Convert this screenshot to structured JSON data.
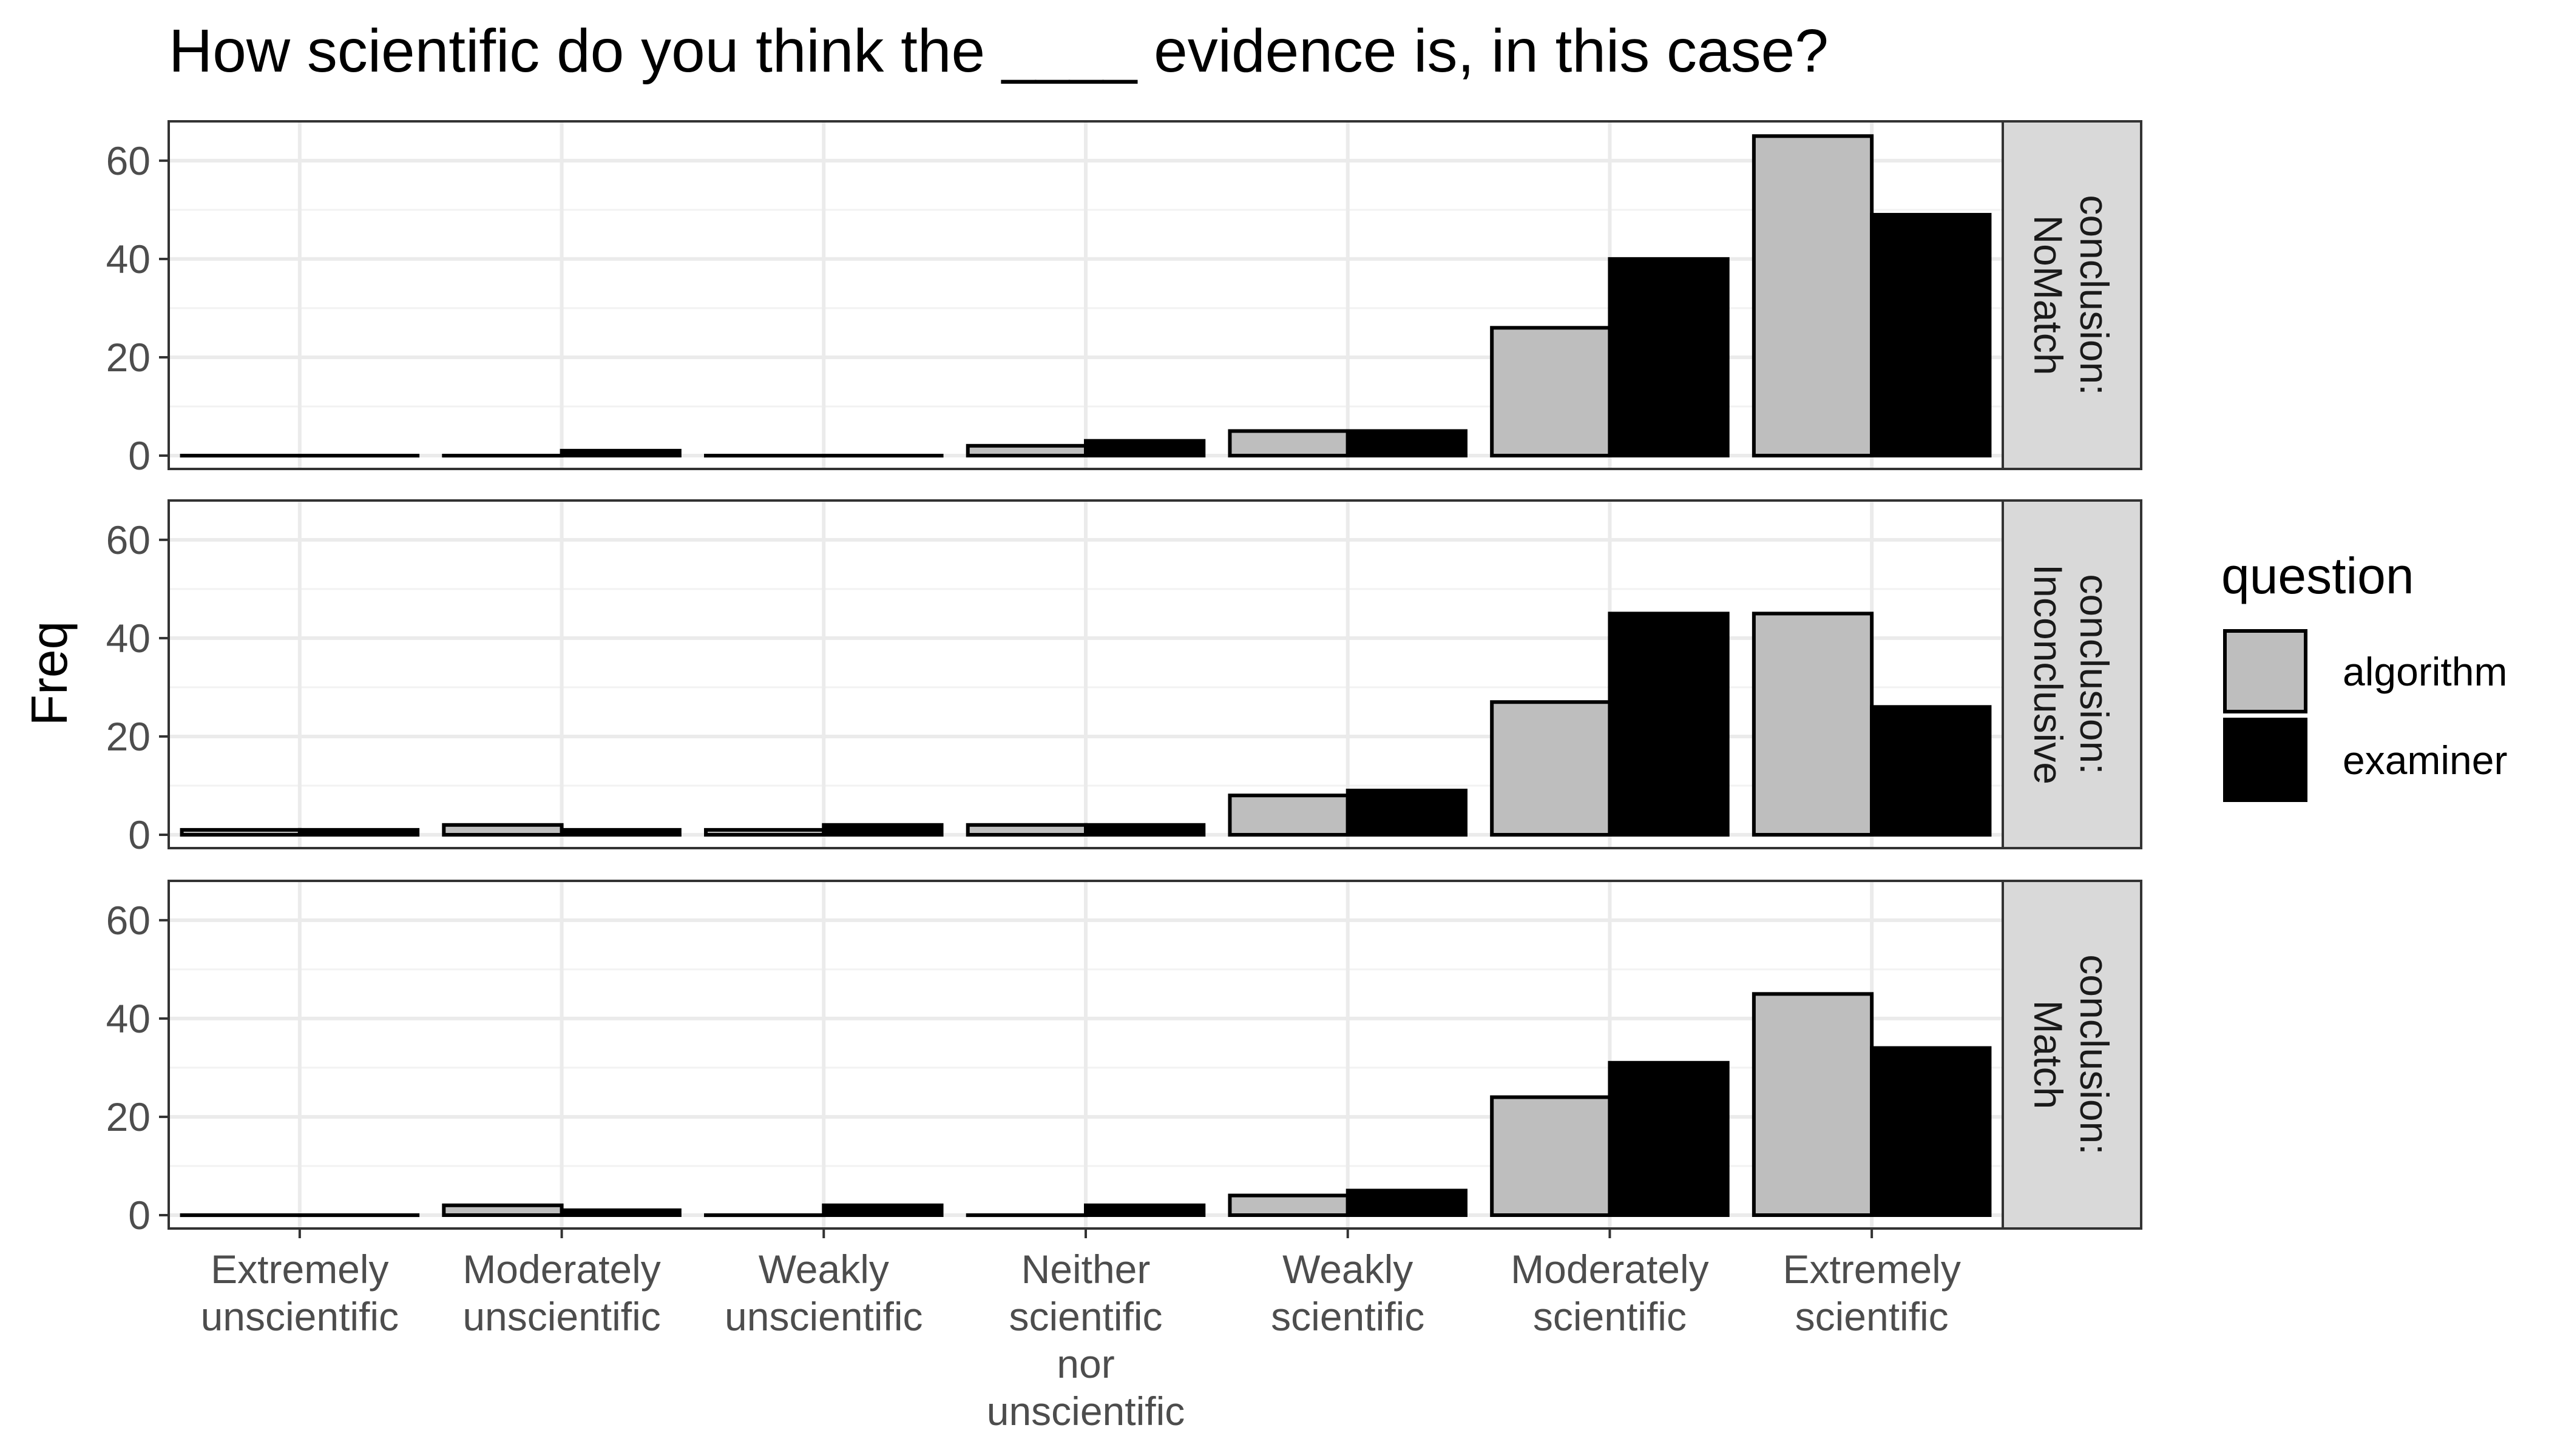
{
  "chart_data": {
    "type": "bar",
    "title": "How scientific do you think the ____ evidence is, in this case?",
    "xlabel": "",
    "ylabel": "Freq",
    "ylim": [
      0,
      68
    ],
    "yticks": [
      "0",
      "20",
      "40",
      "60"
    ],
    "grid": true,
    "legend": {
      "title": "question",
      "placement": "right",
      "entries": [
        {
          "name": "algorithm",
          "color": "#bebebe"
        },
        {
          "name": "examiner",
          "color": "#000000"
        }
      ]
    },
    "categories": [
      [
        "Extremely",
        "unscientific"
      ],
      [
        "Moderately",
        "unscientific"
      ],
      [
        "Weakly",
        "unscientific"
      ],
      [
        "Neither",
        "scientific",
        "nor",
        "unscientific"
      ],
      [
        "Weakly",
        "scientific"
      ],
      [
        "Moderately",
        "scientific"
      ],
      [
        "Extremely",
        "scientific"
      ]
    ],
    "facets": [
      {
        "label": [
          "conclusion:",
          "NoMatch"
        ],
        "series": [
          {
            "name": "algorithm",
            "values": [
              0,
              0,
              0,
              2,
              5,
              26,
              65
            ]
          },
          {
            "name": "examiner",
            "values": [
              0,
              1,
              0,
              3,
              5,
              40,
              49
            ]
          }
        ]
      },
      {
        "label": [
          "conclusion:",
          "Inconclusive"
        ],
        "series": [
          {
            "name": "algorithm",
            "values": [
              1,
              2,
              1,
              2,
              8,
              27,
              45
            ]
          },
          {
            "name": "examiner",
            "values": [
              1,
              1,
              2,
              2,
              9,
              45,
              26
            ]
          }
        ]
      },
      {
        "label": [
          "conclusion:",
          "Match"
        ],
        "series": [
          {
            "name": "algorithm",
            "values": [
              0,
              2,
              0,
              0,
              4,
              24,
              45
            ]
          },
          {
            "name": "examiner",
            "values": [
              0,
              1,
              2,
              2,
              5,
              31,
              34
            ]
          }
        ]
      }
    ]
  }
}
